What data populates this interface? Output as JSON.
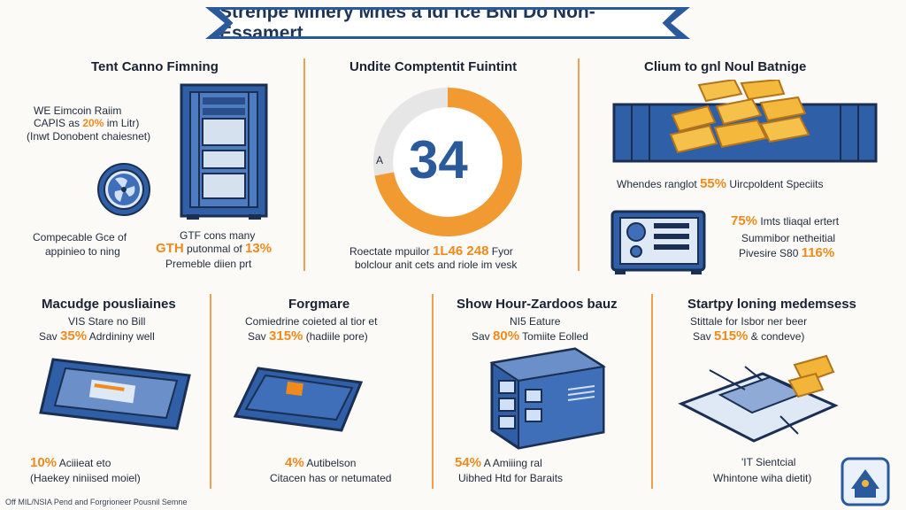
{
  "title": "Strenpe Minery Mhes a Idi fce BNI Do Non-Essamert",
  "sections": {
    "s1": {
      "header": "Tent Canno Fimning",
      "line1": "WE Eimcoin Raiim",
      "line2_pre": "CAPIS as ",
      "line2_pct": "20%",
      "line2_post": " im Litr)",
      "line3": "(Inwt Donobent chaiesnet)",
      "left_cap1": "Compecable Gce of",
      "left_cap2": "appinieo to ning",
      "right_cap1": "GTF cons many",
      "right_cap2_pre": "GTH",
      "right_cap2_mid": " putonmal of ",
      "right_cap2_pct": "13%",
      "right_cap3": "Premeble diien prt"
    },
    "s2": {
      "header": "Undite Comptentit Fuintint",
      "gauge_value": "34",
      "gauge_side": "A",
      "gauge_fraction": 0.72,
      "cap1_pre": "Roectate mpuilor ",
      "cap1_num": "1L46 248",
      "cap1_post": " Fyor",
      "cap2": "bolclour anit cets and riole im vesk"
    },
    "s3": {
      "header": "Clium to gnl Noul Batnige",
      "line1_pre": "Whendes ranglot ",
      "line1_pct": "55%",
      "line1_post": " Uircpoldent Speciits",
      "r1_pct": "75%",
      "r1_post": " Imts tliaqal ertert",
      "r2": "Summibor netheitial",
      "r3_pre": "Pivesire S80 ",
      "r3_pct": "116%"
    },
    "b1": {
      "header": "Macudge pousliaines",
      "line1": "VIS Stare no Bill",
      "line2_pre": "Sav ",
      "line2_pct": "35%",
      "line2_post": " Adrdininy well",
      "foot_pct": "10%",
      "foot1_post": " Aciiieat eto",
      "foot2": "(Haekey niniised moiel)"
    },
    "b2": {
      "header": "Forgmare",
      "line1": "Comiedrine coieted al tior et",
      "line2_pre": "Sav ",
      "line2_pct": "315%",
      "line2_post": " (hadiile pore)",
      "foot_pct": "4%",
      "foot1_post": " Autibelson",
      "foot2": "Citacen has or netumated"
    },
    "b3": {
      "header": "Show Hour-Zardoos bauz",
      "line1": "NI5 Eature",
      "line2_pre": "Sav ",
      "line2_pct": "80%",
      "line2_post": " Tomiite Eolled",
      "foot_pct": "54%",
      "foot1_post": " A Amiiing ral",
      "foot2": "Uibhed Htd for Baraits"
    },
    "b4": {
      "header": "Startpy loning medemsess",
      "line1": "Stittale for Isbor ner beer",
      "line2_pre": "Sav ",
      "line2_pct": "515%",
      "line2_post": " & condeve)",
      "foot1": "'IT Sientcial",
      "foot2": "Whintone wiha dietit)"
    }
  },
  "footer_note": "Off MIL/NSIA Pend and Forgrioneer Pousnil Semne",
  "colors": {
    "navy": "#2a5a9c",
    "orange": "#f08a1c",
    "gold": "#f2b53a",
    "light_blue": "#6b8fc8"
  }
}
